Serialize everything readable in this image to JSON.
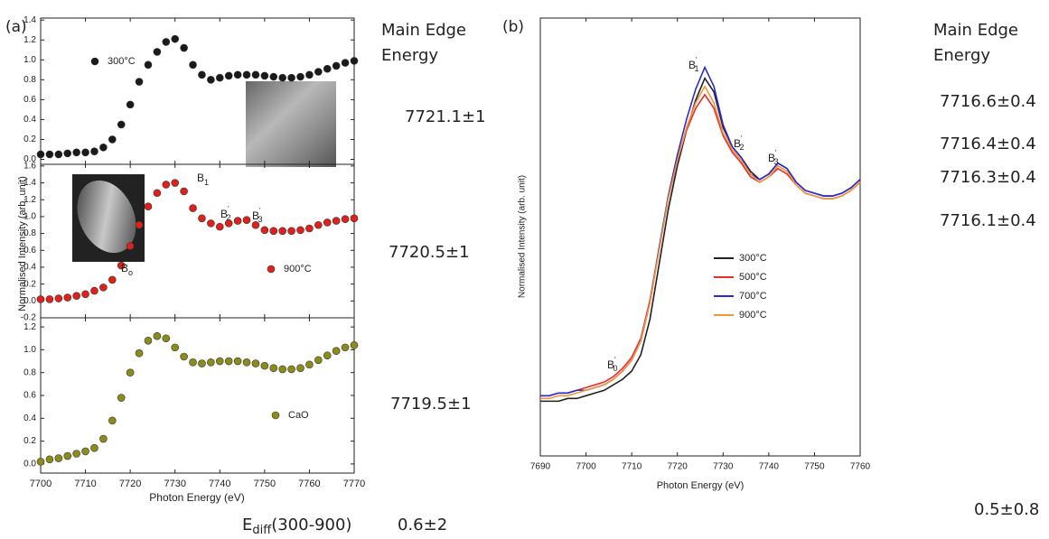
{
  "chart_data": [
    {
      "type": "scatter",
      "panel_label": "(a)",
      "ylabel": "Normalised Intensity (arb. unit)",
      "x": [
        7700,
        7702,
        7704,
        7706,
        7708,
        7710,
        7712,
        7714,
        7716,
        7718,
        7720,
        7722,
        7724,
        7726,
        7728,
        7730,
        7732,
        7734,
        7736,
        7738,
        7740,
        7742,
        7744,
        7746,
        7748,
        7750,
        7752,
        7754,
        7756,
        7758,
        7760,
        7762,
        7764,
        7766,
        7768,
        7770
      ],
      "series": [
        {
          "name": "300°C",
          "color": "#1a1a1a",
          "values": [
            0.05,
            0.05,
            0.05,
            0.06,
            0.07,
            0.07,
            0.08,
            0.12,
            0.2,
            0.35,
            0.55,
            0.78,
            0.95,
            1.08,
            1.18,
            1.21,
            1.12,
            0.95,
            0.85,
            0.8,
            0.82,
            0.84,
            0.85,
            0.85,
            0.85,
            0.84,
            0.83,
            0.82,
            0.82,
            0.83,
            0.85,
            0.88,
            0.91,
            0.94,
            0.97,
            0.99
          ]
        }
      ],
      "xlim": [
        7700,
        7770
      ],
      "xticks": [
        7700,
        7710,
        7720,
        7730,
        7740,
        7750,
        7760,
        7770
      ],
      "ylim": [
        -0.05,
        1.42
      ],
      "yticks": [
        {
          "value": 0,
          "label": "0.0"
        },
        0.2,
        0.4,
        0.6,
        0.8,
        {
          "value": 1,
          "label": "1.0"
        },
        1.2,
        1.4
      ]
    },
    {
      "type": "scatter",
      "x": [
        7700,
        7702,
        7704,
        7706,
        7708,
        7710,
        7712,
        7714,
        7716,
        7718,
        7720,
        7722,
        7724,
        7726,
        7728,
        7730,
        7732,
        7734,
        7736,
        7738,
        7740,
        7742,
        7744,
        7746,
        7748,
        7750,
        7752,
        7754,
        7756,
        7758,
        7760,
        7762,
        7764,
        7766,
        7768,
        7770
      ],
      "series": [
        {
          "name": "900°C",
          "color": "#e0201b",
          "values": [
            0.02,
            0.02,
            0.03,
            0.04,
            0.06,
            0.08,
            0.12,
            0.16,
            0.25,
            0.42,
            0.65,
            0.9,
            1.12,
            1.28,
            1.38,
            1.4,
            1.3,
            1.1,
            0.98,
            0.92,
            0.88,
            0.92,
            0.95,
            0.96,
            0.9,
            0.84,
            0.83,
            0.83,
            0.83,
            0.84,
            0.86,
            0.9,
            0.93,
            0.95,
            0.97,
            0.98
          ]
        }
      ],
      "annotations": [
        {
          "text": "B",
          "sub": "1"
        },
        {
          "text": "B",
          "sub": "2",
          "sup": "'"
        },
        {
          "text": "B",
          "sub": "3",
          "sup": "'"
        },
        {
          "text": "B",
          "sub": "o"
        }
      ],
      "xlim": [
        7700,
        7770
      ],
      "xticks": [
        7700,
        7710,
        7720,
        7730,
        7740,
        7750,
        7760,
        7770
      ],
      "ylim": [
        -0.2,
        1.62
      ],
      "yticks": [
        -0.2,
        {
          "value": 0,
          "label": "0.0"
        },
        0.2,
        0.4,
        0.6,
        0.8,
        {
          "value": 1,
          "label": "1.0"
        },
        1.2,
        1.4,
        1.6
      ]
    },
    {
      "type": "scatter",
      "xlabel": "Photon Energy (eV)",
      "x": [
        7700,
        7702,
        7704,
        7706,
        7708,
        7710,
        7712,
        7714,
        7716,
        7718,
        7720,
        7722,
        7724,
        7726,
        7728,
        7730,
        7732,
        7734,
        7736,
        7738,
        7740,
        7742,
        7744,
        7746,
        7748,
        7750,
        7752,
        7754,
        7756,
        7758,
        7760,
        7762,
        7764,
        7766,
        7768,
        7770
      ],
      "series": [
        {
          "name": "CaO",
          "color": "#8c8c1a",
          "values": [
            0.02,
            0.04,
            0.05,
            0.07,
            0.09,
            0.11,
            0.14,
            0.22,
            0.38,
            0.58,
            0.8,
            0.97,
            1.08,
            1.12,
            1.1,
            1.02,
            0.94,
            0.89,
            0.88,
            0.89,
            0.9,
            0.9,
            0.9,
            0.89,
            0.88,
            0.86,
            0.84,
            0.83,
            0.83,
            0.84,
            0.87,
            0.91,
            0.95,
            0.99,
            1.02,
            1.04
          ]
        }
      ],
      "xlim": [
        7700,
        7770
      ],
      "xticks": [
        7700,
        7710,
        7720,
        7730,
        7740,
        7750,
        7760,
        7770
      ],
      "ylim": [
        -0.08,
        1.28
      ],
      "yticks": [
        {
          "value": 0,
          "label": "0.0"
        },
        0.2,
        0.4,
        0.6,
        0.8,
        {
          "value": 1,
          "label": "1.0"
        },
        1.2
      ]
    },
    {
      "type": "line",
      "panel_label": "(b)",
      "xlabel": "Photon Energy (eV)",
      "ylabel": "Normalised Intensity (arb. unit)",
      "x": [
        7690,
        7692,
        7694,
        7696,
        7698,
        7700,
        7702,
        7704,
        7706,
        7708,
        7710,
        7712,
        7714,
        7716,
        7718,
        7720,
        7722,
        7724,
        7726,
        7728,
        7730,
        7732,
        7734,
        7736,
        7738,
        7740,
        7742,
        7744,
        7746,
        7748,
        7750,
        7752,
        7754,
        7756,
        7758,
        7760
      ],
      "series": [
        {
          "name": "300°C",
          "color": "#222222",
          "values": [
            0,
            0,
            0,
            0.01,
            0.01,
            0.02,
            0.03,
            0.04,
            0.06,
            0.08,
            0.11,
            0.17,
            0.3,
            0.5,
            0.7,
            0.86,
            0.99,
            1.1,
            1.18,
            1.13,
            1.0,
            0.93,
            0.89,
            0.84,
            0.81,
            0.83,
            0.87,
            0.85,
            0.8,
            0.77,
            0.76,
            0.75,
            0.75,
            0.76,
            0.78,
            0.81
          ]
        },
        {
          "name": "500°C",
          "color": "#e8302a",
          "values": [
            0.02,
            0.02,
            0.03,
            0.03,
            0.04,
            0.05,
            0.06,
            0.07,
            0.09,
            0.12,
            0.16,
            0.23,
            0.37,
            0.56,
            0.74,
            0.88,
            0.99,
            1.07,
            1.12,
            1.07,
            0.97,
            0.91,
            0.87,
            0.82,
            0.8,
            0.82,
            0.85,
            0.83,
            0.79,
            0.76,
            0.75,
            0.74,
            0.74,
            0.75,
            0.77,
            0.8
          ]
        },
        {
          "name": "700°C",
          "color": "#2b2bd6",
          "values": [
            0.02,
            0.02,
            0.03,
            0.03,
            0.04,
            0.04,
            0.05,
            0.06,
            0.08,
            0.11,
            0.15,
            0.22,
            0.36,
            0.56,
            0.75,
            0.9,
            1.03,
            1.14,
            1.22,
            1.15,
            1.01,
            0.93,
            0.89,
            0.83,
            0.81,
            0.83,
            0.87,
            0.85,
            0.8,
            0.77,
            0.76,
            0.75,
            0.75,
            0.76,
            0.78,
            0.81
          ]
        },
        {
          "name": "900°C",
          "color": "#f0963c",
          "values": [
            0.01,
            0.01,
            0.02,
            0.02,
            0.03,
            0.04,
            0.05,
            0.06,
            0.08,
            0.11,
            0.15,
            0.22,
            0.36,
            0.55,
            0.74,
            0.88,
            1.0,
            1.09,
            1.15,
            1.09,
            0.98,
            0.92,
            0.88,
            0.83,
            0.8,
            0.82,
            0.86,
            0.84,
            0.79,
            0.76,
            0.75,
            0.74,
            0.74,
            0.75,
            0.77,
            0.8
          ]
        }
      ],
      "annotations": [
        {
          "text": "B",
          "sub": "0",
          "sup": "'"
        },
        {
          "text": "B",
          "sub": "1",
          "sup": "'"
        },
        {
          "text": "B",
          "sub": "2",
          "sup": "'"
        },
        {
          "text": "B",
          "sub": "3",
          "sup": "'"
        }
      ],
      "xlim": [
        7690,
        7760
      ],
      "xticks": [
        7690,
        7700,
        7710,
        7720,
        7730,
        7740,
        7750,
        7760
      ],
      "ylim": [
        -0.2,
        1.4
      ]
    }
  ],
  "edge_energy": {
    "a": {
      "header": [
        "Main Edge",
        "Energy"
      ],
      "values": [
        "7721.1±1",
        "7720.5±1",
        "7719.5±1"
      ],
      "diff_label": {
        "text": "E",
        "sub": "diff",
        "rest": "(300-900)"
      },
      "diff_value": "0.6±2"
    },
    "b": {
      "header": [
        "Main Edge",
        "Energy"
      ],
      "values": [
        "7716.6±0.4",
        "7716.4±0.4",
        "7716.3±0.4",
        "7716.1±0.4"
      ],
      "diff_value": "0.5±0.8"
    }
  }
}
